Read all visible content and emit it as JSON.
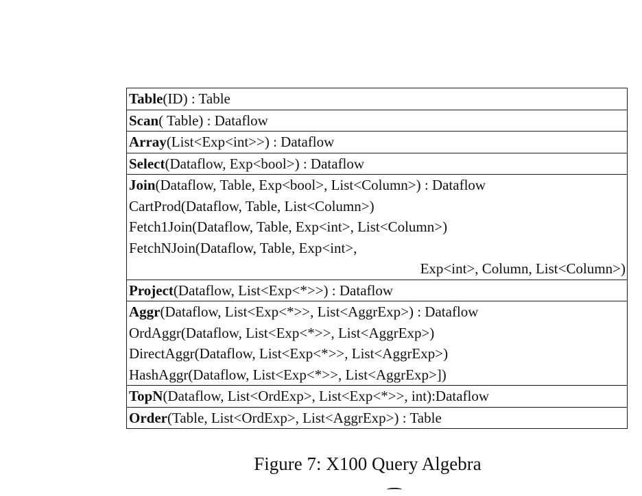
{
  "figure": {
    "caption": "Figure 7: X100 Query Algebra",
    "rows": [
      {
        "lines": [
          {
            "op": "Table",
            "rest": "(ID) : Table"
          }
        ]
      },
      {
        "lines": [
          {
            "op": "Scan",
            "rest": "( Table) : Dataflow"
          }
        ]
      },
      {
        "lines": [
          {
            "op": "Array",
            "rest": "(List<Exp<int>>) : Dataflow"
          }
        ]
      },
      {
        "lines": [
          {
            "op": "Select",
            "rest": "(Dataflow, Exp<bool>) : Dataflow"
          }
        ]
      },
      {
        "lines": [
          {
            "op": "Join",
            "rest": "(Dataflow, Table, Exp<bool>, List<Column>) : Dataflow"
          },
          {
            "op": "",
            "rest": "CartProd(Dataflow, Table, List<Column>)"
          },
          {
            "op": "",
            "rest": "Fetch1Join(Dataflow, Table, Exp<int>, List<Column>)"
          },
          {
            "op": "",
            "rest": "FetchNJoin(Dataflow, Table, Exp<int>,"
          },
          {
            "op": "",
            "rest": "Exp<int>, Column, List<Column>)",
            "align": "right"
          }
        ]
      },
      {
        "lines": [
          {
            "op": "Project",
            "rest": "(Dataflow, List<Exp<*>>) : Dataflow"
          }
        ]
      },
      {
        "lines": [
          {
            "op": "Aggr",
            "rest": "(Dataflow, List<Exp<*>>, List<AggrExp>) : Dataflow"
          },
          {
            "op": "",
            "rest": "OrdAggr(Dataflow, List<Exp<*>>, List<AggrExp>)"
          },
          {
            "op": "",
            "rest": "DirectAggr(Dataflow, List<Exp<*>>, List<AggrExp>)"
          },
          {
            "op": "",
            "rest": "HashAggr(Dataflow, List<Exp<*>>, List<AggrExp>])"
          }
        ]
      },
      {
        "lines": [
          {
            "op": "TopN",
            "rest": "(Dataflow, List<OrdExp>, List<Exp<*>>, int):Dataflow"
          }
        ]
      },
      {
        "lines": [
          {
            "op": "Order",
            "rest": "(Table, List<OrdExp>, List<AggrExp>) : Table"
          }
        ]
      }
    ]
  }
}
